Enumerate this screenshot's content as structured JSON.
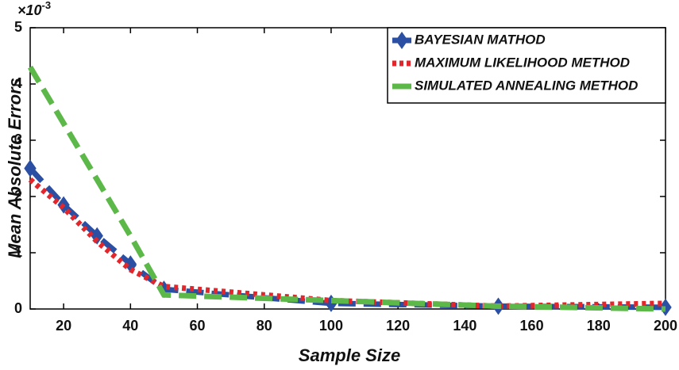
{
  "chart_data": {
    "type": "line",
    "xlabel": "Sample Size",
    "ylabel": "Mean Absolute Errors",
    "y_scale": {
      "base": "×10",
      "exponent": "-3"
    },
    "x": [
      10,
      20,
      30,
      40,
      50,
      100,
      150,
      200
    ],
    "series": [
      {
        "name": "BAYESIAN MATHOD",
        "color": "#2b4fa3",
        "style": "dashed",
        "marker": "diamond",
        "values": [
          2.5,
          1.85,
          1.3,
          0.8,
          0.35,
          0.1,
          0.05,
          0.03
        ]
      },
      {
        "name": "MAXIMUM LIKELIHOOD METHOD",
        "color": "#e3262b",
        "style": "dotted",
        "marker": "none",
        "values": [
          2.3,
          1.8,
          1.2,
          0.7,
          0.4,
          0.15,
          0.05,
          0.1
        ]
      },
      {
        "name": "SIMULATED ANNEALING METHOD",
        "color": "#5cb848",
        "style": "dashed",
        "marker": "none",
        "values": [
          4.3,
          3.3,
          2.3,
          1.3,
          0.25,
          0.15,
          0.05,
          0.0
        ]
      }
    ],
    "xlim": [
      10,
      200
    ],
    "xticks": [
      20,
      40,
      60,
      80,
      100,
      120,
      140,
      160,
      180,
      200
    ],
    "ylim": [
      0,
      5
    ],
    "yticks": [
      0,
      1,
      2,
      3,
      4,
      5
    ],
    "legend": "upper right"
  }
}
